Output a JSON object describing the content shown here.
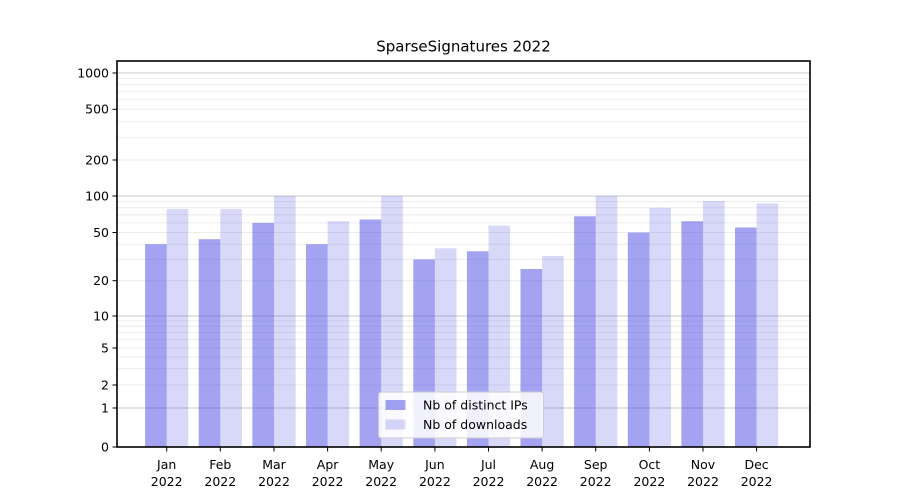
{
  "chart_data": {
    "type": "bar",
    "title": "SparseSignatures 2022",
    "categories": [
      "Jan",
      "Feb",
      "Mar",
      "Apr",
      "May",
      "Jun",
      "Jul",
      "Aug",
      "Sep",
      "Oct",
      "Nov",
      "Dec"
    ],
    "x_year": "2022",
    "series": [
      {
        "name": "Nb of distinct IPs",
        "color": "rgba(72,72,229,0.50)",
        "values": [
          40,
          44,
          60,
          40,
          64,
          30,
          35,
          25,
          68,
          50,
          62,
          55
        ]
      },
      {
        "name": "Nb of downloads",
        "color": "rgba(72,72,229,0.21)",
        "values": [
          78,
          78,
          100,
          62,
          100,
          37,
          57,
          32,
          100,
          80,
          91,
          87
        ]
      }
    ],
    "y_ticks": [
      0,
      1,
      2,
      5,
      10,
      20,
      50,
      100,
      200,
      500,
      1000
    ],
    "y_scale": "symlog",
    "ylim": [
      0,
      1250
    ],
    "grid": true,
    "legend_position": "lower center"
  },
  "colors": {
    "bar_dark_hex": "#a4a4f1",
    "bar_light_hex": "#d9d9f8",
    "grid_minor": "#ececec",
    "grid_major": "#c9c9c9",
    "axis_spine": "#000000",
    "legend_border": "#cccccc",
    "text": "#000000"
  }
}
